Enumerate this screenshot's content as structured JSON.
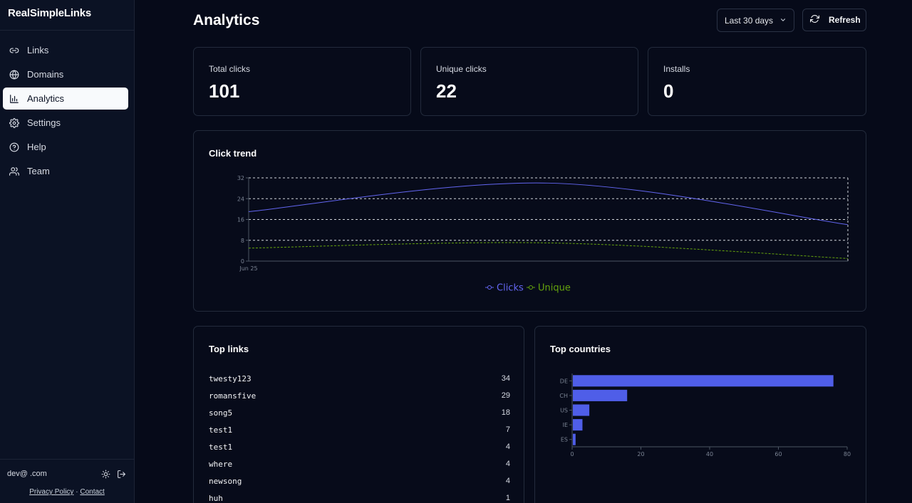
{
  "app": {
    "brand": "RealSimpleLinks"
  },
  "sidebar": {
    "items": [
      {
        "label": "Links",
        "icon": "link-icon"
      },
      {
        "label": "Domains",
        "icon": "globe-icon"
      },
      {
        "label": "Analytics",
        "icon": "bar-chart-icon",
        "active": true
      },
      {
        "label": "Settings",
        "icon": "gear-icon"
      },
      {
        "label": "Help",
        "icon": "help-circle-icon"
      },
      {
        "label": "Team",
        "icon": "users-icon"
      }
    ],
    "user_email": "dev@           .com",
    "privacy_label": "Privacy Policy",
    "separator": "·",
    "contact_label": "Contact"
  },
  "header": {
    "title": "Analytics",
    "range_selected": "Last 30 days",
    "refresh_label": "Refresh"
  },
  "stats": [
    {
      "label": "Total clicks",
      "value": "101"
    },
    {
      "label": "Unique clicks",
      "value": "22"
    },
    {
      "label": "Installs",
      "value": "0"
    }
  ],
  "trend": {
    "title": "Click trend"
  },
  "top_links": {
    "title": "Top links",
    "rows": [
      {
        "name": "twesty123",
        "count": "34"
      },
      {
        "name": "romansfive",
        "count": "29"
      },
      {
        "name": "song5",
        "count": "18"
      },
      {
        "name": "test1",
        "count": "7"
      },
      {
        "name": "test1",
        "count": "4"
      },
      {
        "name": "where",
        "count": "4"
      },
      {
        "name": "newsong",
        "count": "4"
      },
      {
        "name": "huh",
        "count": "1"
      }
    ]
  },
  "top_countries": {
    "title": "Top countries"
  },
  "colors": {
    "clicks": "#6366f1",
    "unique": "#65a30d",
    "bar": "#4f5ee8"
  },
  "chart_data": [
    {
      "type": "line",
      "title": "Click trend",
      "x": [
        "Jun 25",
        "",
        ""
      ],
      "x_tick_labels": [
        "Jun 25"
      ],
      "ylim": [
        0,
        32
      ],
      "y_ticks": [
        0,
        8,
        16,
        24,
        32
      ],
      "grid": true,
      "legend": "bottom-center",
      "series": [
        {
          "name": "Clicks",
          "values": [
            19,
            30,
            14
          ]
        },
        {
          "name": "Unique",
          "values": [
            5,
            7,
            1
          ]
        }
      ]
    },
    {
      "type": "bar",
      "orientation": "horizontal",
      "categories": [
        "DE",
        "CH",
        "US",
        "IE",
        "ES"
      ],
      "values": [
        76,
        16,
        5,
        3,
        1
      ],
      "xlim": [
        0,
        80
      ],
      "x_ticks": [
        0,
        20,
        40,
        60,
        80
      ]
    }
  ]
}
